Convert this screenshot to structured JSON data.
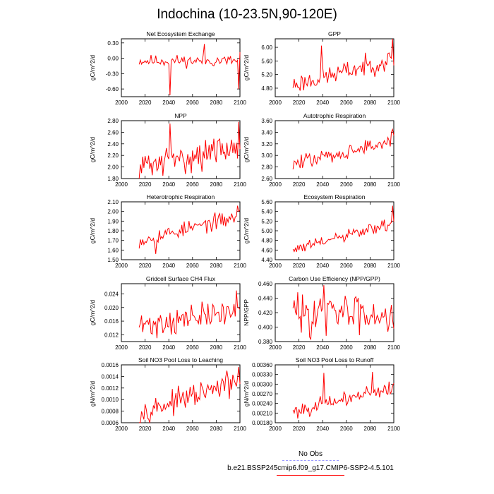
{
  "title": "Indochina (10-23.5N,90-120E)",
  "x_ticks": [
    2000,
    2020,
    2040,
    2060,
    2080,
    2100
  ],
  "series_color": "#ff0000",
  "obs_color": "#9999ff",
  "legend": {
    "obs_label": "No Obs",
    "model_label": "b.e21.BSSP245cmip6.f09_g17.CMIP6-SSP2-4.5.101"
  },
  "chart_data": [
    {
      "type": "line",
      "title": "Net Ecosystem Exchange",
      "ylabel": "gC/m^2/d",
      "xlim": [
        2000,
        2100
      ],
      "ylim": [
        -0.75,
        0.38
      ],
      "ytick_values": [
        -0.6,
        -0.3,
        0,
        0.3
      ],
      "ytick_labels": [
        "-0.60",
        "-0.30",
        "0.00",
        "0.30"
      ],
      "x_start": 2015,
      "x_step": 1,
      "seed": 11,
      "base": [
        -0.05,
        -0.05
      ],
      "noise": 0.07,
      "spikes": [
        [
          2041,
          -0.72
        ],
        [
          2070,
          0.28
        ],
        [
          2099,
          -0.6
        ],
        [
          2100,
          0.12
        ]
      ],
      "values_description": ""
    },
    {
      "type": "line",
      "title": "GPP",
      "ylabel": "gC/m^2/d",
      "xlim": [
        2000,
        2100
      ],
      "ylim": [
        4.55,
        6.25
      ],
      "ytick_values": [
        4.8,
        5.2,
        5.6,
        6.0
      ],
      "ytick_labels": [
        "4.80",
        "5.20",
        "5.60",
        "6.00"
      ],
      "x_start": 2015,
      "x_step": 1,
      "seed": 23,
      "base": [
        4.9,
        5.65
      ],
      "noise": 0.18,
      "spikes": [
        [
          2039,
          6.05
        ],
        [
          2099,
          6.3
        ]
      ],
      "values_description": ""
    },
    {
      "type": "line",
      "title": "NPP",
      "ylabel": "gC/m^2/d",
      "xlim": [
        2000,
        2100
      ],
      "ylim": [
        1.8,
        2.8
      ],
      "ytick_values": [
        1.8,
        2.0,
        2.2,
        2.4,
        2.6,
        2.8
      ],
      "ytick_labels": [
        "1.80",
        "2.00",
        "2.20",
        "2.40",
        "2.60",
        "2.80"
      ],
      "x_start": 2015,
      "x_step": 1,
      "seed": 31,
      "base": [
        2.0,
        2.35
      ],
      "noise": 0.15,
      "spikes": [
        [
          2041,
          2.75
        ],
        [
          2099,
          2.78
        ]
      ],
      "values_description": ""
    },
    {
      "type": "line",
      "title": "Autotrophic Respiration",
      "ylabel": "gC/m^2/d",
      "xlim": [
        2000,
        2100
      ],
      "ylim": [
        2.6,
        3.6
      ],
      "ytick_values": [
        2.6,
        2.8,
        3.0,
        3.2,
        3.4,
        3.6
      ],
      "ytick_labels": [
        "2.60",
        "2.80",
        "3.00",
        "3.20",
        "3.40",
        "3.60"
      ],
      "x_start": 2015,
      "x_step": 1,
      "seed": 47,
      "base": [
        2.85,
        3.25
      ],
      "noise": 0.08,
      "spikes": [
        [
          2099,
          3.45
        ]
      ],
      "values_description": ""
    },
    {
      "type": "line",
      "title": "Heterotrophic Respiration",
      "ylabel": "gC/m^2/d",
      "xlim": [
        2000,
        2100
      ],
      "ylim": [
        1.5,
        2.1
      ],
      "ytick_values": [
        1.5,
        1.6,
        1.7,
        1.8,
        1.9,
        2.0,
        2.1
      ],
      "ytick_labels": [
        "1.50",
        "1.60",
        "1.70",
        "1.80",
        "1.90",
        "2.00",
        "2.10"
      ],
      "x_start": 2015,
      "x_step": 1,
      "seed": 53,
      "base": [
        1.7,
        1.95
      ],
      "noise": 0.05,
      "spikes": [
        [
          2029,
          1.56
        ],
        [
          2098,
          2.06
        ]
      ],
      "values_description": ""
    },
    {
      "type": "line",
      "title": "Ecosystem Respiration",
      "ylabel": "gC/m^2/d",
      "xlim": [
        2000,
        2100
      ],
      "ylim": [
        4.4,
        5.6
      ],
      "ytick_values": [
        4.4,
        4.6,
        4.8,
        5.0,
        5.2,
        5.4,
        5.6
      ],
      "ytick_labels": [
        "4.40",
        "4.60",
        "4.80",
        "5.00",
        "5.20",
        "5.40",
        "5.60"
      ],
      "x_start": 2015,
      "x_step": 1,
      "seed": 61,
      "base": [
        4.6,
        5.15
      ],
      "noise": 0.08,
      "spikes": [
        [
          2099,
          5.52
        ]
      ],
      "values_description": ""
    },
    {
      "type": "line",
      "title": "Gridcell Surface CH4 Flux",
      "ylabel": "gC/m^2/d",
      "xlim": [
        2000,
        2100
      ],
      "ylim": [
        0.01,
        0.027
      ],
      "ytick_values": [
        0.012,
        0.016,
        0.02,
        0.024
      ],
      "ytick_labels": [
        "0.012",
        "0.016",
        "0.020",
        "0.024"
      ],
      "x_start": 2015,
      "x_step": 1,
      "seed": 71,
      "base": [
        0.0145,
        0.019
      ],
      "noise": 0.0025,
      "spikes": [
        [
          2030,
          0.011
        ],
        [
          2097,
          0.025
        ]
      ],
      "values_description": ""
    },
    {
      "type": "line",
      "title": "Carbon Use Efficiency (NPP/GPP)",
      "ylabel": "NPP/GPP",
      "xlim": [
        2000,
        2100
      ],
      "ylim": [
        0.38,
        0.46
      ],
      "ytick_values": [
        0.38,
        0.4,
        0.42,
        0.44,
        0.46
      ],
      "ytick_labels": [
        "0.380",
        "0.400",
        "0.420",
        "0.440",
        "0.460"
      ],
      "x_start": 2015,
      "x_step": 1,
      "seed": 83,
      "base": [
        0.42,
        0.42
      ],
      "noise": 0.017,
      "spikes": [
        [
          2041,
          0.458
        ],
        [
          2043,
          0.388
        ],
        [
          2100,
          0.398
        ]
      ],
      "values_description": ""
    },
    {
      "type": "line",
      "title": "Soil NO3 Pool Loss to Leaching",
      "ylabel": "gN/m^2/d",
      "xlim": [
        2000,
        2100
      ],
      "ylim": [
        0.0006,
        0.0016
      ],
      "ytick_values": [
        0.0006,
        0.0008,
        0.001,
        0.0012,
        0.0014,
        0.0016
      ],
      "ytick_labels": [
        "0.0006",
        "0.0008",
        "0.0010",
        "0.0012",
        "0.0014",
        "0.0016"
      ],
      "x_start": 2015,
      "x_step": 1,
      "seed": 97,
      "base": [
        0.00078,
        0.0013
      ],
      "noise": 0.00012,
      "spikes": [
        [
          2089,
          0.0015
        ]
      ],
      "values_description": ""
    },
    {
      "type": "line",
      "title": "Soil NO3 Pool Loss to Runoff",
      "ylabel": "gN/m^2/d",
      "xlim": [
        2000,
        2100
      ],
      "ylim": [
        0.0018,
        0.0036
      ],
      "ytick_values": [
        0.0018,
        0.0021,
        0.0024,
        0.0027,
        0.003,
        0.0033,
        0.0036
      ],
      "ytick_labels": [
        "0.00180",
        "0.00210",
        "0.00240",
        "0.00270",
        "0.00300",
        "0.00330",
        "0.00360"
      ],
      "x_start": 2015,
      "x_step": 1,
      "seed": 101,
      "base": [
        0.00215,
        0.0029
      ],
      "noise": 0.00014,
      "spikes": [
        [
          2041,
          0.00335
        ],
        [
          2082,
          0.00338
        ]
      ],
      "values_description": ""
    }
  ]
}
